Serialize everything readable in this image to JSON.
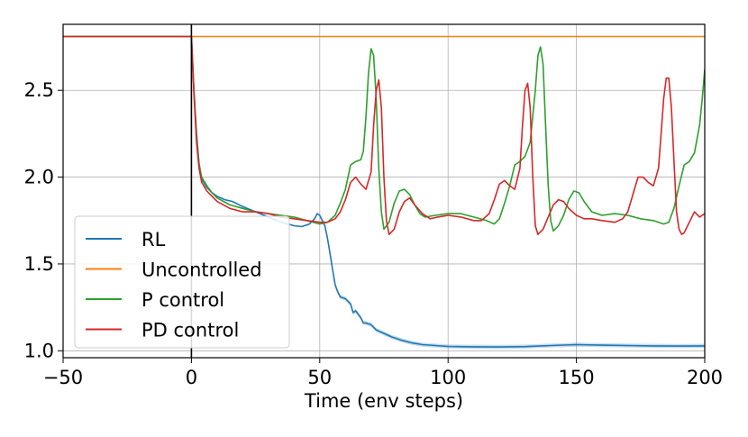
{
  "chart_data": {
    "type": "line",
    "title": "",
    "xlabel": "Time (env steps)",
    "ylabel": "",
    "xlim": [
      -50,
      200
    ],
    "ylim": [
      0.96,
      2.88
    ],
    "xticks": [
      -50,
      0,
      50,
      100,
      150,
      200
    ],
    "xtick_labels": [
      "−50",
      "0",
      "50",
      "100",
      "150",
      "200"
    ],
    "yticks": [
      1.0,
      1.5,
      2.0,
      2.5
    ],
    "ytick_labels": [
      "1.0",
      "1.5",
      "2.0",
      "2.5"
    ],
    "grid": true,
    "legend_position": "lower-left",
    "vline_x": 0,
    "series": [
      {
        "name": "RL",
        "color": "#1f77b4",
        "band": true,
        "points": [
          [
            -50,
            2.81
          ],
          [
            0,
            2.81
          ],
          [
            1,
            2.5
          ],
          [
            2,
            2.25
          ],
          [
            3,
            2.08
          ],
          [
            4,
            1.99
          ],
          [
            6,
            1.94
          ],
          [
            8,
            1.91
          ],
          [
            10,
            1.89
          ],
          [
            13,
            1.87
          ],
          [
            16,
            1.86
          ],
          [
            20,
            1.83
          ],
          [
            25,
            1.8
          ],
          [
            30,
            1.77
          ],
          [
            35,
            1.74
          ],
          [
            40,
            1.72
          ],
          [
            43,
            1.715
          ],
          [
            46,
            1.73
          ],
          [
            48,
            1.76
          ],
          [
            49,
            1.79
          ],
          [
            50,
            1.78
          ],
          [
            51,
            1.75
          ],
          [
            52,
            1.72
          ],
          [
            53,
            1.65
          ],
          [
            54,
            1.56
          ],
          [
            55,
            1.47
          ],
          [
            56,
            1.38
          ],
          [
            57,
            1.34
          ],
          [
            58,
            1.31
          ],
          [
            60,
            1.3
          ],
          [
            62,
            1.27
          ],
          [
            63,
            1.22
          ],
          [
            64,
            1.23
          ],
          [
            65,
            1.21
          ],
          [
            66,
            1.19
          ],
          [
            67,
            1.16
          ],
          [
            68,
            1.16
          ],
          [
            70,
            1.15
          ],
          [
            72,
            1.12
          ],
          [
            75,
            1.1
          ],
          [
            78,
            1.08
          ],
          [
            82,
            1.06
          ],
          [
            86,
            1.045
          ],
          [
            90,
            1.035
          ],
          [
            95,
            1.03
          ],
          [
            100,
            1.025
          ],
          [
            110,
            1.023
          ],
          [
            120,
            1.022
          ],
          [
            130,
            1.024
          ],
          [
            140,
            1.03
          ],
          [
            150,
            1.035
          ],
          [
            160,
            1.032
          ],
          [
            170,
            1.03
          ],
          [
            180,
            1.028
          ],
          [
            190,
            1.027
          ],
          [
            200,
            1.028
          ]
        ]
      },
      {
        "name": "Uncontrolled",
        "color": "#ff7f0e",
        "band": false,
        "points": [
          [
            -50,
            2.81
          ],
          [
            200,
            2.81
          ]
        ]
      },
      {
        "name": "P control",
        "color": "#2ca02c",
        "band": false,
        "points": [
          [
            -50,
            2.81
          ],
          [
            0,
            2.81
          ],
          [
            1,
            2.5
          ],
          [
            2,
            2.22
          ],
          [
            3,
            2.07
          ],
          [
            4,
            2.0
          ],
          [
            6,
            1.95
          ],
          [
            8,
            1.91
          ],
          [
            10,
            1.88
          ],
          [
            15,
            1.84
          ],
          [
            20,
            1.82
          ],
          [
            25,
            1.8
          ],
          [
            30,
            1.79
          ],
          [
            35,
            1.78
          ],
          [
            40,
            1.77
          ],
          [
            45,
            1.75
          ],
          [
            50,
            1.73
          ],
          [
            53,
            1.74
          ],
          [
            56,
            1.78
          ],
          [
            58,
            1.85
          ],
          [
            60,
            1.93
          ],
          [
            62,
            2.07
          ],
          [
            64,
            2.09
          ],
          [
            66,
            2.1
          ],
          [
            67,
            2.15
          ],
          [
            68,
            2.35
          ],
          [
            69,
            2.6
          ],
          [
            70,
            2.74
          ],
          [
            71,
            2.7
          ],
          [
            72,
            2.45
          ],
          [
            73,
            2.05
          ],
          [
            74,
            1.8
          ],
          [
            75,
            1.7
          ],
          [
            77,
            1.74
          ],
          [
            79,
            1.85
          ],
          [
            81,
            1.92
          ],
          [
            83,
            1.93
          ],
          [
            85,
            1.9
          ],
          [
            87,
            1.84
          ],
          [
            89,
            1.79
          ],
          [
            91,
            1.77
          ],
          [
            95,
            1.78
          ],
          [
            100,
            1.79
          ],
          [
            105,
            1.79
          ],
          [
            110,
            1.77
          ],
          [
            115,
            1.75
          ],
          [
            118,
            1.73
          ],
          [
            120,
            1.76
          ],
          [
            122,
            1.85
          ],
          [
            124,
            1.95
          ],
          [
            126,
            2.07
          ],
          [
            128,
            2.09
          ],
          [
            130,
            2.12
          ],
          [
            132,
            2.2
          ],
          [
            134,
            2.5
          ],
          [
            135,
            2.7
          ],
          [
            136,
            2.75
          ],
          [
            137,
            2.65
          ],
          [
            138,
            2.3
          ],
          [
            139,
            1.95
          ],
          [
            140,
            1.75
          ],
          [
            141,
            1.69
          ],
          [
            143,
            1.72
          ],
          [
            145,
            1.78
          ],
          [
            147,
            1.87
          ],
          [
            149,
            1.92
          ],
          [
            151,
            1.91
          ],
          [
            153,
            1.86
          ],
          [
            156,
            1.8
          ],
          [
            160,
            1.78
          ],
          [
            165,
            1.79
          ],
          [
            170,
            1.78
          ],
          [
            175,
            1.76
          ],
          [
            180,
            1.75
          ],
          [
            184,
            1.73
          ],
          [
            186,
            1.74
          ],
          [
            188,
            1.82
          ],
          [
            190,
            1.95
          ],
          [
            192,
            2.07
          ],
          [
            194,
            2.09
          ],
          [
            196,
            2.14
          ],
          [
            198,
            2.3
          ],
          [
            199,
            2.45
          ],
          [
            200,
            2.62
          ]
        ]
      },
      {
        "name": "PD control",
        "color": "#d62728",
        "band": false,
        "points": [
          [
            -50,
            2.81
          ],
          [
            0,
            2.81
          ],
          [
            1,
            2.48
          ],
          [
            2,
            2.2
          ],
          [
            3,
            2.05
          ],
          [
            4,
            1.97
          ],
          [
            6,
            1.92
          ],
          [
            8,
            1.89
          ],
          [
            10,
            1.86
          ],
          [
            15,
            1.82
          ],
          [
            20,
            1.8
          ],
          [
            25,
            1.8
          ],
          [
            30,
            1.79
          ],
          [
            35,
            1.77
          ],
          [
            40,
            1.76
          ],
          [
            45,
            1.75
          ],
          [
            50,
            1.74
          ],
          [
            53,
            1.74
          ],
          [
            56,
            1.76
          ],
          [
            58,
            1.8
          ],
          [
            60,
            1.87
          ],
          [
            62,
            1.97
          ],
          [
            64,
            2.0
          ],
          [
            66,
            1.96
          ],
          [
            68,
            1.93
          ],
          [
            70,
            2.03
          ],
          [
            71,
            2.3
          ],
          [
            72,
            2.5
          ],
          [
            73,
            2.56
          ],
          [
            74,
            2.4
          ],
          [
            75,
            2.0
          ],
          [
            76,
            1.75
          ],
          [
            77,
            1.67
          ],
          [
            79,
            1.7
          ],
          [
            81,
            1.8
          ],
          [
            83,
            1.86
          ],
          [
            85,
            1.88
          ],
          [
            87,
            1.84
          ],
          [
            90,
            1.79
          ],
          [
            93,
            1.76
          ],
          [
            96,
            1.77
          ],
          [
            100,
            1.78
          ],
          [
            105,
            1.77
          ],
          [
            110,
            1.75
          ],
          [
            113,
            1.75
          ],
          [
            116,
            1.79
          ],
          [
            118,
            1.87
          ],
          [
            120,
            1.96
          ],
          [
            122,
            1.98
          ],
          [
            124,
            1.95
          ],
          [
            126,
            1.93
          ],
          [
            128,
            2.05
          ],
          [
            129,
            2.3
          ],
          [
            130,
            2.5
          ],
          [
            131,
            2.54
          ],
          [
            132,
            2.4
          ],
          [
            133,
            2.0
          ],
          [
            134,
            1.72
          ],
          [
            135,
            1.67
          ],
          [
            137,
            1.7
          ],
          [
            139,
            1.77
          ],
          [
            141,
            1.84
          ],
          [
            143,
            1.87
          ],
          [
            145,
            1.86
          ],
          [
            147,
            1.82
          ],
          [
            150,
            1.78
          ],
          [
            153,
            1.76
          ],
          [
            156,
            1.76
          ],
          [
            160,
            1.75
          ],
          [
            165,
            1.74
          ],
          [
            168,
            1.76
          ],
          [
            170,
            1.8
          ],
          [
            172,
            1.9
          ],
          [
            174,
            2.0
          ],
          [
            176,
            2.0
          ],
          [
            178,
            1.97
          ],
          [
            180,
            1.95
          ],
          [
            182,
            2.05
          ],
          [
            183,
            2.25
          ],
          [
            184,
            2.45
          ],
          [
            185,
            2.57
          ],
          [
            186,
            2.57
          ],
          [
            187,
            2.4
          ],
          [
            188,
            2.1
          ],
          [
            189,
            1.8
          ],
          [
            190,
            1.7
          ],
          [
            191,
            1.67
          ],
          [
            192,
            1.68
          ],
          [
            194,
            1.74
          ],
          [
            196,
            1.8
          ],
          [
            198,
            1.77
          ],
          [
            200,
            1.79
          ]
        ]
      }
    ]
  }
}
